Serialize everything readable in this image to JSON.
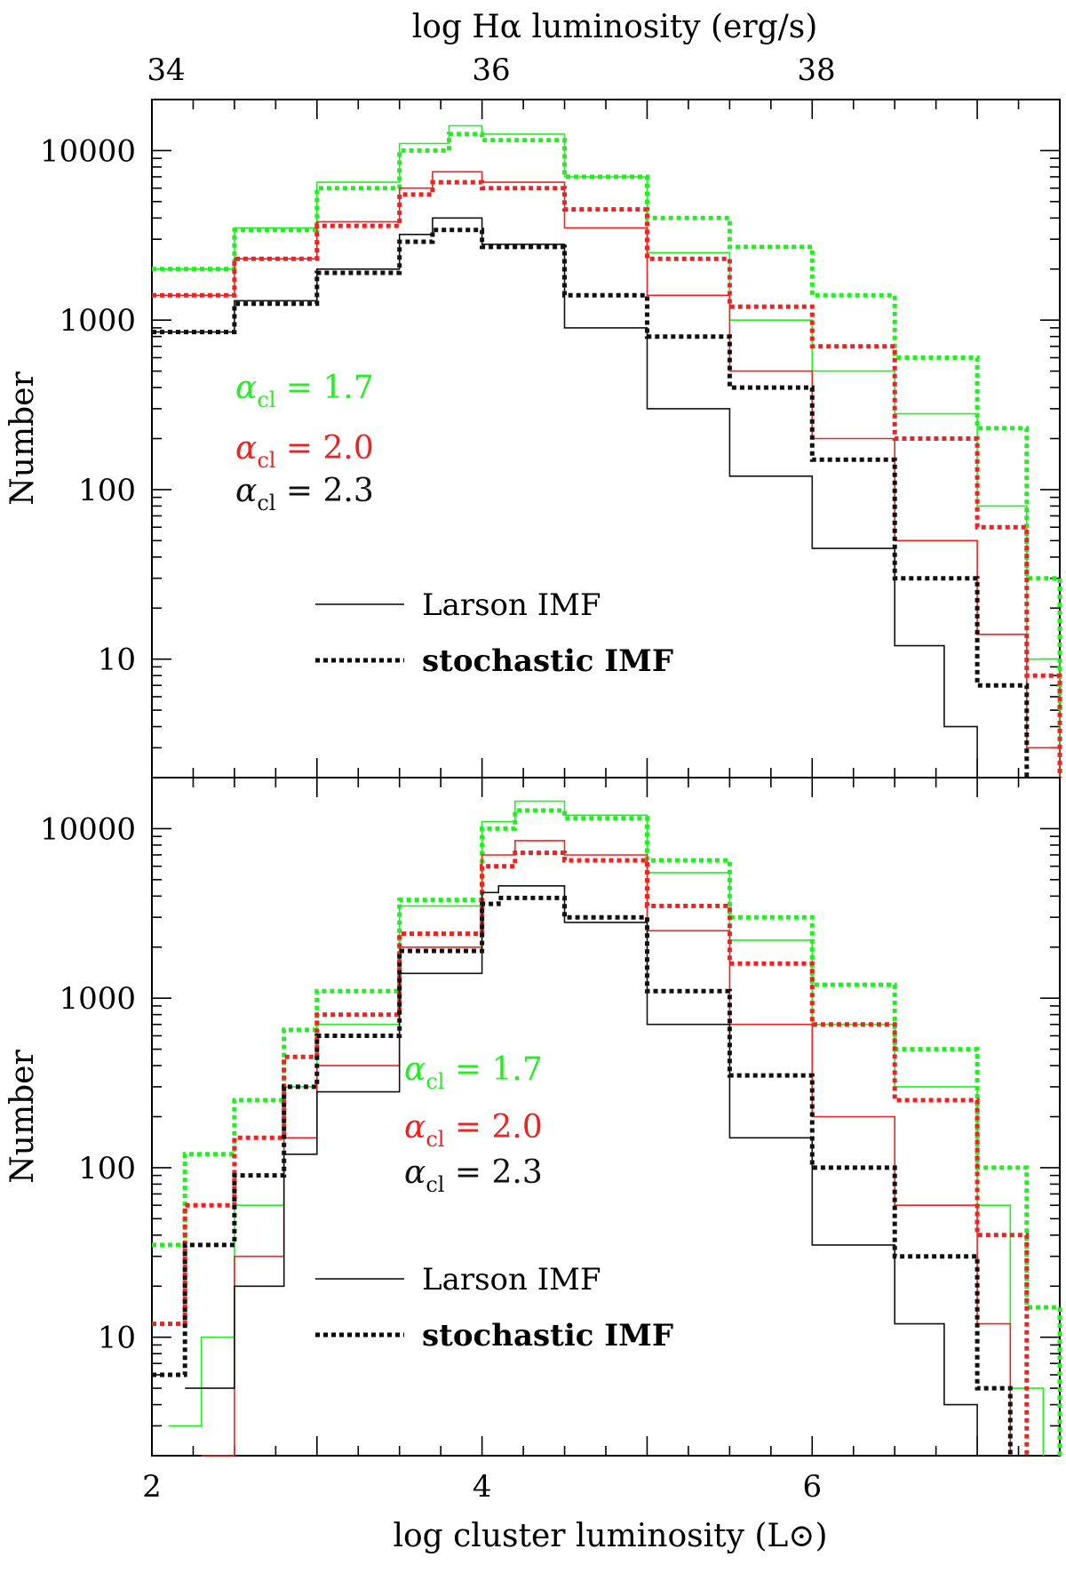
{
  "chart_data": [
    {
      "type": "line",
      "panel": "top",
      "title": "",
      "top_axis": {
        "label": "log Hα luminosity (erg/s)",
        "ticks": [
          "34",
          "36",
          "38"
        ],
        "tick_values": [
          34,
          36,
          38
        ]
      },
      "xlabel": "",
      "ylabel": "Number",
      "xlim": [
        2,
        7.5
      ],
      "ylim": [
        2,
        20000
      ],
      "yscale": "log",
      "y_tick_labels": [
        "10",
        "100",
        "1000",
        "10000"
      ],
      "y_tick_values": [
        10,
        100,
        1000,
        10000
      ],
      "legend_position": "bottom-center",
      "legend": [
        {
          "style": "solid",
          "label": "Larson IMF"
        },
        {
          "style": "dotted",
          "label": "stochastic IMF"
        }
      ],
      "annotations": [
        {
          "symbol": "α",
          "sub": "cl",
          "text": " = 1.7",
          "color": "#22ee22"
        },
        {
          "symbol": "α",
          "sub": "cl",
          "text": " = 2.0",
          "color": "#ee2222"
        },
        {
          "symbol": "α",
          "sub": "cl",
          "text": " = 2.3",
          "color": "#111111"
        }
      ],
      "series": [
        {
          "name": "α=1.7 Larson",
          "style": "solid",
          "color": "#22ee22",
          "x": [
            2.0,
            2.5,
            3.0,
            3.5,
            3.8,
            4.0,
            4.5,
            5.0,
            5.5,
            6.0,
            6.5,
            7.0,
            7.3,
            7.5
          ],
          "y": [
            2000,
            3500,
            6500,
            11000,
            14000,
            12500,
            7000,
            2500,
            1000,
            500,
            280,
            80,
            10,
            2
          ]
        },
        {
          "name": "α=1.7 stochastic",
          "style": "dotted",
          "color": "#22ee22",
          "x": [
            2.0,
            2.5,
            3.0,
            3.5,
            3.8,
            4.0,
            4.5,
            5.0,
            5.5,
            6.0,
            6.5,
            7.0,
            7.3,
            7.5
          ],
          "y": [
            2000,
            3400,
            6000,
            10000,
            12500,
            11500,
            7000,
            4000,
            2700,
            1400,
            600,
            230,
            30,
            5
          ]
        },
        {
          "name": "α=2.0 Larson",
          "style": "solid",
          "color": "#ee2222",
          "x": [
            2.0,
            2.5,
            3.0,
            3.5,
            3.7,
            4.0,
            4.5,
            5.0,
            5.5,
            6.0,
            6.5,
            7.0,
            7.3,
            7.5
          ],
          "y": [
            1400,
            2300,
            3800,
            6000,
            7500,
            6500,
            3500,
            1400,
            500,
            200,
            50,
            14,
            3,
            2
          ]
        },
        {
          "name": "α=2.0 stochastic",
          "style": "dotted",
          "color": "#ee2222",
          "x": [
            2.0,
            2.5,
            3.0,
            3.5,
            3.7,
            4.0,
            4.5,
            5.0,
            5.5,
            6.0,
            6.5,
            7.0,
            7.3,
            7.5
          ],
          "y": [
            1400,
            2300,
            3600,
            5500,
            6500,
            6000,
            4500,
            2300,
            1200,
            700,
            200,
            60,
            8,
            2
          ]
        },
        {
          "name": "α=2.3 Larson",
          "style": "solid",
          "color": "#111111",
          "x": [
            2.0,
            2.5,
            3.0,
            3.5,
            3.7,
            4.0,
            4.5,
            5.0,
            5.5,
            6.0,
            6.5,
            6.8,
            7.0
          ],
          "y": [
            850,
            1300,
            2000,
            3200,
            4000,
            2800,
            900,
            300,
            120,
            45,
            12,
            4,
            2
          ]
        },
        {
          "name": "α=2.3 stochastic",
          "style": "dotted",
          "color": "#111111",
          "x": [
            2.0,
            2.5,
            3.0,
            3.5,
            3.7,
            4.0,
            4.5,
            5.0,
            5.5,
            6.0,
            6.5,
            7.0,
            7.3
          ],
          "y": [
            850,
            1250,
            1900,
            2900,
            3400,
            2700,
            1400,
            800,
            400,
            150,
            30,
            7,
            2
          ]
        }
      ]
    },
    {
      "type": "line",
      "panel": "bottom",
      "title": "",
      "xlabel": "log cluster luminosity (L⊙)",
      "ylabel": "Number",
      "x_tick_labels": [
        "2",
        "4",
        "6"
      ],
      "x_tick_values": [
        2,
        4,
        6
      ],
      "xlim": [
        2,
        7.5
      ],
      "ylim": [
        2,
        20000
      ],
      "yscale": "log",
      "y_tick_labels": [
        "10",
        "100",
        "1000",
        "10000"
      ],
      "y_tick_values": [
        10,
        100,
        1000,
        10000
      ],
      "legend_position": "bottom-center",
      "legend": [
        {
          "style": "solid",
          "label": "Larson IMF"
        },
        {
          "style": "dotted",
          "label": "stochastic IMF"
        }
      ],
      "annotations": [
        {
          "symbol": "α",
          "sub": "cl",
          "text": " = 1.7",
          "color": "#22ee22"
        },
        {
          "symbol": "α",
          "sub": "cl",
          "text": " = 2.0",
          "color": "#ee2222"
        },
        {
          "symbol": "α",
          "sub": "cl",
          "text": " = 2.3",
          "color": "#111111"
        }
      ],
      "series": [
        {
          "name": "α=1.7 Larson",
          "style": "solid",
          "color": "#22ee22",
          "x": [
            2.1,
            2.3,
            2.5,
            2.8,
            3.0,
            3.5,
            4.0,
            4.2,
            4.5,
            5.0,
            5.5,
            6.0,
            6.5,
            7.0,
            7.2,
            7.4
          ],
          "y": [
            3,
            10,
            60,
            300,
            700,
            3500,
            11000,
            14500,
            12000,
            5500,
            2200,
            700,
            300,
            60,
            5,
            2
          ]
        },
        {
          "name": "α=1.7 stochastic",
          "style": "dotted",
          "color": "#22ee22",
          "x": [
            2.0,
            2.2,
            2.5,
            2.8,
            3.0,
            3.5,
            4.0,
            4.2,
            4.5,
            5.0,
            5.5,
            6.0,
            6.5,
            7.0,
            7.3,
            7.5
          ],
          "y": [
            35,
            120,
            250,
            650,
            1100,
            3800,
            10000,
            12800,
            11500,
            6500,
            3000,
            1200,
            500,
            100,
            15,
            2
          ]
        },
        {
          "name": "α=2.0 Larson",
          "style": "solid",
          "color": "#ee2222",
          "x": [
            2.3,
            2.5,
            2.8,
            3.0,
            3.5,
            4.0,
            4.2,
            4.5,
            5.0,
            5.5,
            6.0,
            6.5,
            7.0,
            7.2
          ],
          "y": [
            2,
            30,
            150,
            400,
            2000,
            7000,
            8500,
            7000,
            2500,
            700,
            200,
            60,
            12,
            2
          ]
        },
        {
          "name": "α=2.0 stochastic",
          "style": "dotted",
          "color": "#ee2222",
          "x": [
            2.0,
            2.2,
            2.5,
            2.8,
            3.0,
            3.5,
            4.0,
            4.2,
            4.5,
            5.0,
            5.5,
            6.0,
            6.5,
            7.0,
            7.3
          ],
          "y": [
            12,
            60,
            150,
            450,
            800,
            2400,
            6000,
            7200,
            6500,
            3500,
            1600,
            700,
            250,
            40,
            2
          ]
        },
        {
          "name": "α=2.3 Larson",
          "style": "solid",
          "color": "#111111",
          "x": [
            2.2,
            2.5,
            2.8,
            3.0,
            3.5,
            4.0,
            4.1,
            4.5,
            5.0,
            5.5,
            6.0,
            6.5,
            6.8,
            7.0
          ],
          "y": [
            5,
            20,
            120,
            280,
            1400,
            4200,
            4600,
            2800,
            700,
            150,
            35,
            12,
            4,
            2
          ]
        },
        {
          "name": "α=2.3 stochastic",
          "style": "dotted",
          "color": "#111111",
          "x": [
            2.0,
            2.2,
            2.5,
            2.8,
            3.0,
            3.5,
            4.0,
            4.1,
            4.5,
            5.0,
            5.5,
            6.0,
            6.5,
            7.0,
            7.2
          ],
          "y": [
            6,
            35,
            90,
            300,
            600,
            1900,
            3600,
            3900,
            3000,
            1100,
            350,
            100,
            30,
            5,
            2
          ]
        }
      ]
    }
  ]
}
